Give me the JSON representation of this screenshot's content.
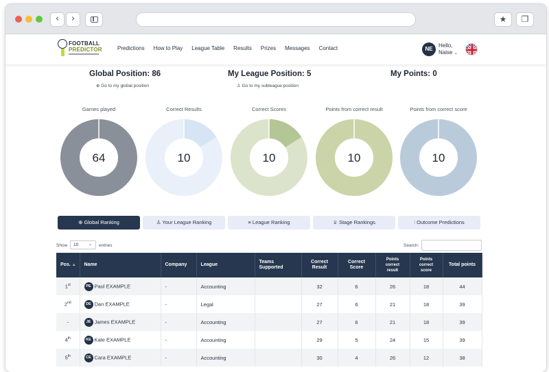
{
  "nav": {
    "links": [
      "Predictions",
      "How to Play",
      "League Table",
      "Results",
      "Prizes",
      "Messages",
      "Contact"
    ],
    "user_initials": "NE",
    "greeting": "Hello,",
    "user_name": "Naise",
    "logo_line1": "FOOTBALL",
    "logo_line2": "PREDICTOR"
  },
  "positions": {
    "global": "Global Position: 86",
    "global_link": "Go to my global position",
    "league": "My League Position: 5",
    "league_link": "Go to my subleague position",
    "points": "My Points: 0"
  },
  "stats": [
    {
      "label": "Games played",
      "value": "64",
      "fraction": 1.0,
      "main_color": "#8a9099",
      "accent_color": "#8a9099"
    },
    {
      "label": "Correct Results",
      "value": "10",
      "fraction": 0.16,
      "main_color": "#e9f0fa",
      "accent_color": "#d6e4f4"
    },
    {
      "label": "Correct Scores",
      "value": "10",
      "fraction": 0.16,
      "main_color": "#dbe3cb",
      "accent_color": "#b4c596"
    },
    {
      "label": "Points from correct result",
      "value": "10",
      "fraction": 1.0,
      "main_color": "#cbd3a8",
      "accent_color": "#cbd3a8"
    },
    {
      "label": "Points from correct score",
      "value": "10",
      "fraction": 1.0,
      "main_color": "#b9cbdb",
      "accent_color": "#b9cbdb"
    }
  ],
  "tabs": [
    "Global Ranking",
    "Your League Ranking",
    "League Ranking",
    "Stage Rankings",
    "Outcome Predictions"
  ],
  "table_controls": {
    "show_label": "Show",
    "show_value": "10",
    "entries_label": "entries",
    "search_label": "Search:"
  },
  "table": {
    "headers": [
      "Pos.",
      "Name",
      "Company",
      "League",
      "Teams Supported",
      "Correct Result",
      "Correct Score",
      "Points correct result",
      "Points correct score",
      "Total points"
    ],
    "rows": [
      {
        "pos": "1",
        "pos_sup": "st",
        "initials": "PE",
        "name": "Paul EXAMPLE",
        "company": "-",
        "league": "Accounting",
        "teams": "",
        "cr": "32",
        "cs": "6",
        "pcr": "26",
        "pcs": "18",
        "total": "44"
      },
      {
        "pos": "2",
        "pos_sup": "nd",
        "initials": "DE",
        "name": "Dan EXAMPLE",
        "company": "-",
        "league": "Legal",
        "teams": "",
        "cr": "27",
        "cs": "6",
        "pcr": "21",
        "pcs": "18",
        "total": "39"
      },
      {
        "pos": "-",
        "pos_sup": "",
        "initials": "JE",
        "name": "James EXAMPLE",
        "company": "-",
        "league": "Accounting",
        "teams": "",
        "cr": "27",
        "cs": "6",
        "pcr": "21",
        "pcs": "18",
        "total": "39"
      },
      {
        "pos": "4",
        "pos_sup": "th",
        "initials": "KE",
        "name": "Kate EXAMPLE",
        "company": "-",
        "league": "Accounting",
        "teams": "",
        "cr": "29",
        "cs": "5",
        "pcr": "24",
        "pcs": "15",
        "total": "39"
      },
      {
        "pos": "5",
        "pos_sup": "th",
        "initials": "CE",
        "name": "Cara EXAMPLE",
        "company": "-",
        "league": "Accounting",
        "teams": "",
        "cr": "30",
        "cs": "4",
        "pcr": "26",
        "pcs": "12",
        "total": "38"
      }
    ]
  }
}
